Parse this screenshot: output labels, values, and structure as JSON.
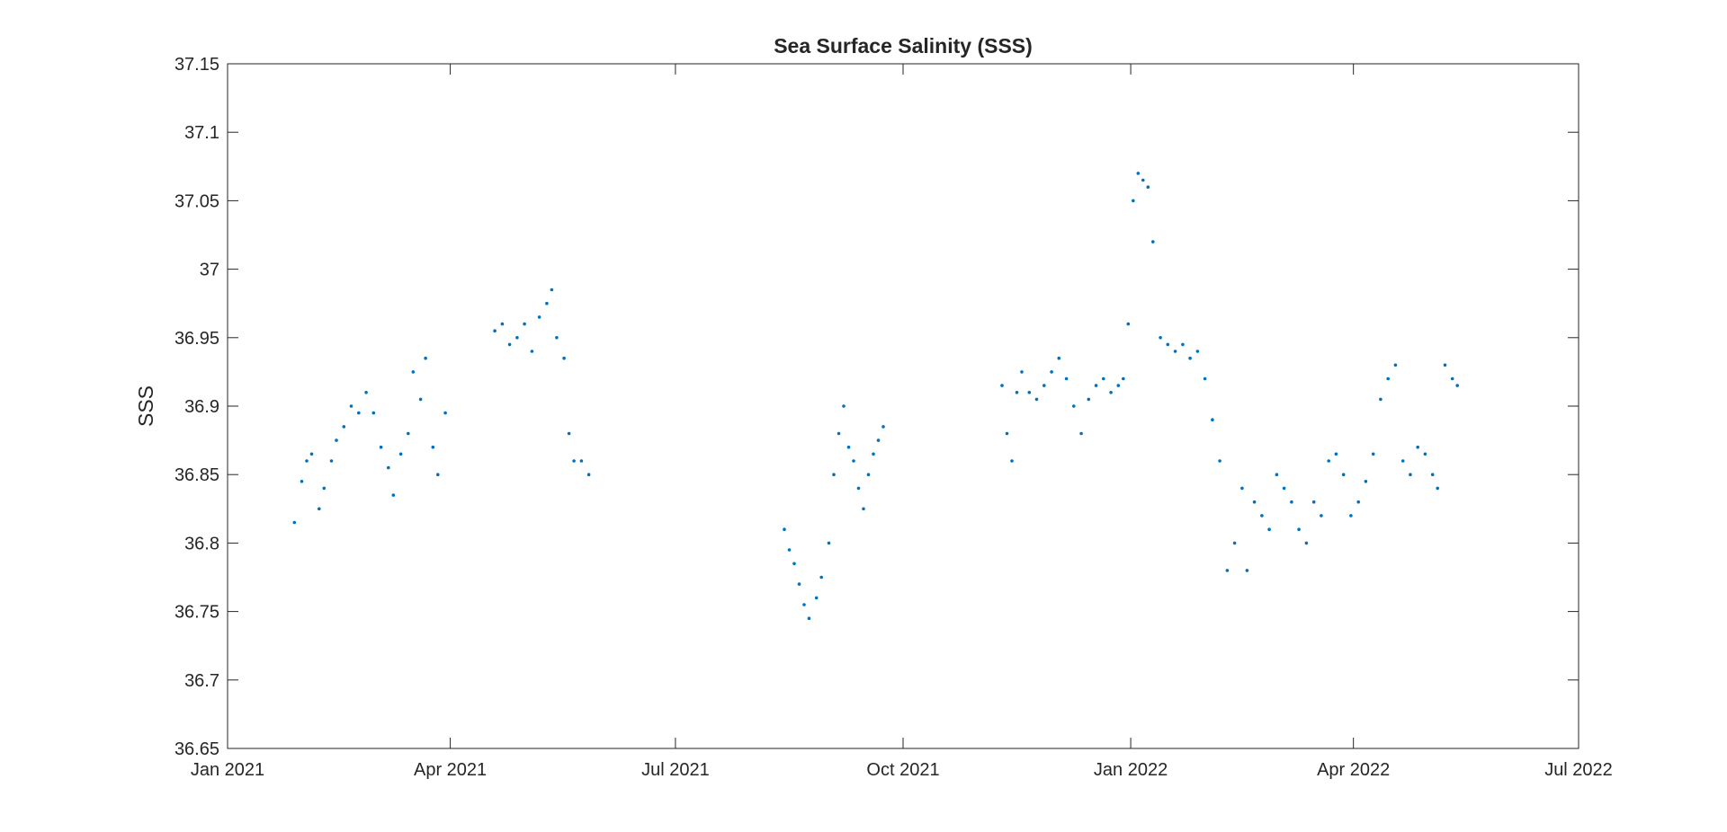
{
  "chart_data": {
    "type": "scatter",
    "title": "Sea Surface Salinity (SSS)",
    "xlabel": "",
    "ylabel": "SSS",
    "xlim": [
      "2021-01-01",
      "2022-07-01"
    ],
    "ylim": [
      36.65,
      37.15
    ],
    "x_ticks": [
      {
        "date": "2021-01-01",
        "label": "Jan 2021"
      },
      {
        "date": "2021-04-01",
        "label": "Apr 2021"
      },
      {
        "date": "2021-07-01",
        "label": "Jul 2021"
      },
      {
        "date": "2021-10-01",
        "label": "Oct 2021"
      },
      {
        "date": "2022-01-01",
        "label": "Jan 2022"
      },
      {
        "date": "2022-04-01",
        "label": "Apr 2022"
      },
      {
        "date": "2022-07-01",
        "label": "Jul 2022"
      }
    ],
    "y_ticks": [
      36.65,
      36.7,
      36.75,
      36.8,
      36.85,
      36.9,
      36.95,
      37,
      37.05,
      37.1,
      37.15
    ],
    "y_tick_labels": [
      "36.65",
      "36.7",
      "36.75",
      "36.8",
      "36.85",
      "36.9",
      "36.95",
      "37",
      "37.05",
      "37.1",
      "37.15"
    ],
    "grid": false,
    "legend": "none",
    "marker_color": "#0072BD",
    "series": [
      {
        "points": [
          [
            "2021-01-28",
            36.815
          ],
          [
            "2021-01-31",
            36.845
          ],
          [
            "2021-02-02",
            36.86
          ],
          [
            "2021-02-04",
            36.865
          ],
          [
            "2021-02-07",
            36.825
          ],
          [
            "2021-02-09",
            36.84
          ],
          [
            "2021-02-12",
            36.86
          ],
          [
            "2021-02-14",
            36.875
          ],
          [
            "2021-02-17",
            36.885
          ],
          [
            "2021-02-20",
            36.9
          ],
          [
            "2021-02-23",
            36.895
          ],
          [
            "2021-02-26",
            36.91
          ],
          [
            "2021-03-01",
            36.895
          ],
          [
            "2021-03-04",
            36.87
          ],
          [
            "2021-03-07",
            36.855
          ],
          [
            "2021-03-09",
            36.835
          ],
          [
            "2021-03-12",
            36.865
          ],
          [
            "2021-03-15",
            36.88
          ],
          [
            "2021-03-17",
            36.925
          ],
          [
            "2021-03-20",
            36.905
          ],
          [
            "2021-03-22",
            36.935
          ],
          [
            "2021-03-25",
            36.87
          ],
          [
            "2021-03-27",
            36.85
          ],
          [
            "2021-03-30",
            36.895
          ],
          [
            "2021-04-19",
            36.955
          ],
          [
            "2021-04-22",
            36.96
          ],
          [
            "2021-04-25",
            36.945
          ],
          [
            "2021-04-28",
            36.95
          ],
          [
            "2021-05-01",
            36.96
          ],
          [
            "2021-05-04",
            36.94
          ],
          [
            "2021-05-07",
            36.965
          ],
          [
            "2021-05-10",
            36.975
          ],
          [
            "2021-05-12",
            36.985
          ],
          [
            "2021-05-14",
            36.95
          ],
          [
            "2021-05-17",
            36.935
          ],
          [
            "2021-05-19",
            36.88
          ],
          [
            "2021-05-21",
            36.86
          ],
          [
            "2021-05-24",
            36.86
          ],
          [
            "2021-05-27",
            36.85
          ],
          [
            "2021-08-14",
            36.81
          ],
          [
            "2021-08-16",
            36.795
          ],
          [
            "2021-08-18",
            36.785
          ],
          [
            "2021-08-20",
            36.77
          ],
          [
            "2021-08-22",
            36.755
          ],
          [
            "2021-08-24",
            36.745
          ],
          [
            "2021-08-27",
            36.76
          ],
          [
            "2021-08-29",
            36.775
          ],
          [
            "2021-09-01",
            36.8
          ],
          [
            "2021-09-03",
            36.85
          ],
          [
            "2021-09-05",
            36.88
          ],
          [
            "2021-09-07",
            36.9
          ],
          [
            "2021-09-09",
            36.87
          ],
          [
            "2021-09-11",
            36.86
          ],
          [
            "2021-09-13",
            36.84
          ],
          [
            "2021-09-15",
            36.825
          ],
          [
            "2021-09-17",
            36.85
          ],
          [
            "2021-09-19",
            36.865
          ],
          [
            "2021-09-21",
            36.875
          ],
          [
            "2021-09-23",
            36.885
          ],
          [
            "2021-11-10",
            36.915
          ],
          [
            "2021-11-12",
            36.88
          ],
          [
            "2021-11-14",
            36.86
          ],
          [
            "2021-11-16",
            36.91
          ],
          [
            "2021-11-18",
            36.925
          ],
          [
            "2021-11-21",
            36.91
          ],
          [
            "2021-11-24",
            36.905
          ],
          [
            "2021-11-27",
            36.915
          ],
          [
            "2021-11-30",
            36.925
          ],
          [
            "2021-12-03",
            36.935
          ],
          [
            "2021-12-06",
            36.92
          ],
          [
            "2021-12-09",
            36.9
          ],
          [
            "2021-12-12",
            36.88
          ],
          [
            "2021-12-15",
            36.905
          ],
          [
            "2021-12-18",
            36.915
          ],
          [
            "2021-12-21",
            36.92
          ],
          [
            "2021-12-24",
            36.91
          ],
          [
            "2021-12-27",
            36.915
          ],
          [
            "2021-12-29",
            36.92
          ],
          [
            "2021-12-31",
            36.96
          ],
          [
            "2022-01-02",
            37.05
          ],
          [
            "2022-01-04",
            37.07
          ],
          [
            "2022-01-06",
            37.065
          ],
          [
            "2022-01-08",
            37.06
          ],
          [
            "2022-01-10",
            37.02
          ],
          [
            "2022-01-13",
            36.95
          ],
          [
            "2022-01-16",
            36.945
          ],
          [
            "2022-01-19",
            36.94
          ],
          [
            "2022-01-22",
            36.945
          ],
          [
            "2022-01-25",
            36.935
          ],
          [
            "2022-01-28",
            36.94
          ],
          [
            "2022-01-31",
            36.92
          ],
          [
            "2022-02-03",
            36.89
          ],
          [
            "2022-02-06",
            36.86
          ],
          [
            "2022-02-09",
            36.78
          ],
          [
            "2022-02-12",
            36.8
          ],
          [
            "2022-02-15",
            36.84
          ],
          [
            "2022-02-17",
            36.78
          ],
          [
            "2022-02-20",
            36.83
          ],
          [
            "2022-02-23",
            36.82
          ],
          [
            "2022-02-26",
            36.81
          ],
          [
            "2022-03-01",
            36.85
          ],
          [
            "2022-03-04",
            36.84
          ],
          [
            "2022-03-07",
            36.83
          ],
          [
            "2022-03-10",
            36.81
          ],
          [
            "2022-03-13",
            36.8
          ],
          [
            "2022-03-16",
            36.83
          ],
          [
            "2022-03-19",
            36.82
          ],
          [
            "2022-03-22",
            36.86
          ],
          [
            "2022-03-25",
            36.865
          ],
          [
            "2022-03-28",
            36.85
          ],
          [
            "2022-03-31",
            36.82
          ],
          [
            "2022-04-03",
            36.83
          ],
          [
            "2022-04-06",
            36.845
          ],
          [
            "2022-04-09",
            36.865
          ],
          [
            "2022-04-12",
            36.905
          ],
          [
            "2022-04-15",
            36.92
          ],
          [
            "2022-04-18",
            36.93
          ],
          [
            "2022-04-21",
            36.86
          ],
          [
            "2022-04-24",
            36.85
          ],
          [
            "2022-04-27",
            36.87
          ],
          [
            "2022-04-30",
            36.865
          ],
          [
            "2022-05-03",
            36.85
          ],
          [
            "2022-05-05",
            36.84
          ],
          [
            "2022-05-08",
            36.93
          ],
          [
            "2022-05-11",
            36.92
          ],
          [
            "2022-05-13",
            36.915
          ]
        ]
      }
    ]
  }
}
